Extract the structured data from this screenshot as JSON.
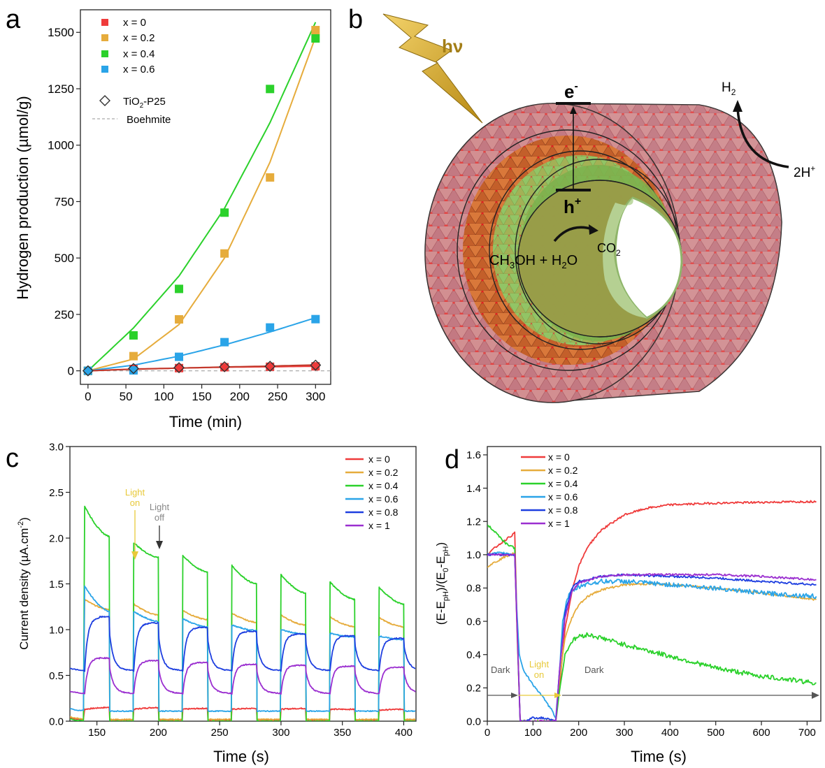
{
  "chart_data": [
    {
      "panel_letter": "a",
      "type": "scatter",
      "xlabel": "Time (min)",
      "ylabel": "Hydrogen production (µmol/g)",
      "xlim": [
        -10,
        320
      ],
      "ylim": [
        -60,
        1600
      ],
      "xticks": [
        0,
        50,
        100,
        150,
        200,
        250,
        300
      ],
      "yticks": [
        0,
        250,
        500,
        750,
        1000,
        1250,
        1500
      ],
      "x": [
        0,
        60,
        120,
        180,
        240,
        300
      ],
      "series": [
        {
          "name": "x = 0",
          "color": "#ef3b3b",
          "marker": "square",
          "values": [
            0,
            8,
            12,
            16,
            18,
            20
          ],
          "fit": [
            0,
            8,
            12,
            16,
            18,
            20
          ]
        },
        {
          "name": "x = 0.2",
          "color": "#e6ac3c",
          "marker": "square",
          "values": [
            0,
            65,
            228,
            520,
            857,
            1510
          ],
          "fit": [
            0,
            52,
            205,
            500,
            925,
            1480
          ]
        },
        {
          "name": "x = 0.4",
          "color": "#2bd12b",
          "marker": "square",
          "values": [
            0,
            157,
            363,
            701,
            1249,
            1473
          ],
          "fit": [
            0,
            190,
            420,
            720,
            1100,
            1545
          ]
        },
        {
          "name": "x = 0.6",
          "color": "#2aa4e8",
          "marker": "square",
          "values": [
            0,
            2,
            62,
            127,
            192,
            229
          ],
          "fit": [
            0,
            25,
            65,
            115,
            172,
            235
          ]
        },
        {
          "name": "TiO2-P25",
          "legend_main": "TiO",
          "legend_sub": "2",
          "legend_rest": "-P25",
          "color": "#555555",
          "marker": "diamond",
          "values": [
            0,
            10,
            14,
            18,
            20,
            25
          ],
          "fit": [
            0,
            7,
            12,
            17,
            21,
            26
          ]
        },
        {
          "name": "Boehmite",
          "color": "#9b9b9b",
          "marker": "dashed-line",
          "values": [
            0,
            0,
            0,
            0,
            0,
            0
          ]
        }
      ],
      "grid": false,
      "legend_position": "top-left"
    },
    {
      "panel_letter": "b",
      "type": "other",
      "photon_label": "hν",
      "electron_label": "e",
      "electron_sup": "-",
      "hole_label": "h",
      "hole_sup": "+",
      "h2_main": "H",
      "h2_sub": "2",
      "proton_label": "2H",
      "proton_sup": "+",
      "reactant_label_main": "CH",
      "reactant_label_sub": "3",
      "reactant_label_rest": "OH + H",
      "reactant_label_sub2": "2",
      "reactant_label_end": "O",
      "co2_main": "CO",
      "co2_sub": "2",
      "colors": {
        "outer_wall": "#d9817a",
        "mid_wall": "#e07b36",
        "inner_wall": "#7ab34a",
        "lightning": "#d4a72c"
      }
    },
    {
      "panel_letter": "c",
      "type": "line",
      "xlabel": "Time (s)",
      "ylabel_main": "Current density (µA.cm",
      "ylabel_sup": "-2",
      "ylabel_end": ")",
      "xlim": [
        128,
        410
      ],
      "ylim": [
        0,
        3.0
      ],
      "xticks": [
        150,
        200,
        250,
        300,
        350,
        400
      ],
      "yticks": [
        0.0,
        0.5,
        1.0,
        1.5,
        2.0,
        2.5,
        3.0
      ],
      "light_on_intervals": [
        [
          140,
          160
        ],
        [
          180,
          200
        ],
        [
          220,
          240
        ],
        [
          260,
          280
        ],
        [
          300,
          320
        ],
        [
          340,
          360
        ],
        [
          380,
          400
        ]
      ],
      "series": [
        {
          "name": "x = 0",
          "color": "#ef3b3b",
          "on_start": [
            0.13,
            0.13,
            0.13,
            0.13,
            0.13,
            0.13,
            0.12
          ],
          "on_end": [
            0.15,
            0.15,
            0.14,
            0.14,
            0.14,
            0.13,
            0.13
          ],
          "dark": 0.01
        },
        {
          "name": "x = 0.2",
          "color": "#e6ac3c",
          "on_start": [
            1.33,
            1.28,
            1.21,
            1.18,
            1.16,
            1.14,
            1.13
          ],
          "on_end": [
            1.22,
            1.16,
            1.11,
            1.08,
            1.05,
            1.03,
            1.03
          ],
          "dark": 0.02
        },
        {
          "name": "x = 0.4",
          "color": "#2bd12b",
          "on_start": [
            2.35,
            1.95,
            1.81,
            1.7,
            1.6,
            1.52,
            1.46
          ],
          "on_end": [
            2.02,
            1.79,
            1.63,
            1.5,
            1.4,
            1.33,
            1.28
          ],
          "dark": 0.0
        },
        {
          "name": "x = 0.6",
          "color": "#2aa4e8",
          "on_start": [
            1.48,
            1.2,
            1.12,
            1.05,
            1.0,
            0.96,
            0.93
          ],
          "on_end": [
            1.2,
            1.09,
            1.03,
            0.99,
            0.95,
            0.92,
            0.89
          ],
          "dark": 0.11
        },
        {
          "name": "x = 0.8",
          "color": "#1e3fe0",
          "on_start": [
            1.18,
            1.08,
            1.05,
            0.99,
            0.96,
            0.94,
            0.93
          ],
          "on_end": [
            1.13,
            1.07,
            1.02,
            0.98,
            0.95,
            0.93,
            0.9
          ],
          "dark": 0.55
        },
        {
          "name": "x = 1",
          "color": "#9b2fd0",
          "on_start": [
            0.69,
            0.66,
            0.64,
            0.62,
            0.61,
            0.6,
            0.59
          ],
          "on_end": [
            0.69,
            0.66,
            0.64,
            0.62,
            0.61,
            0.6,
            0.59
          ],
          "dark": 0.3
        }
      ],
      "annotations": [
        {
          "line1": "Light",
          "line2": "on",
          "x": 180,
          "color": "#e8c93a"
        },
        {
          "line1": "Light",
          "line2": "off",
          "x": 200,
          "color": "#888888"
        }
      ],
      "legend_position": "top-right"
    },
    {
      "panel_letter": "d",
      "type": "line",
      "xlabel": "Time (s)",
      "ylabel_parts": [
        "(E-E",
        "pH",
        ")/(E",
        "0",
        "-E",
        "pH",
        ")"
      ],
      "xlim": [
        0,
        730
      ],
      "ylim": [
        0,
        1.65
      ],
      "xticks": [
        0,
        100,
        200,
        300,
        400,
        500,
        600,
        700
      ],
      "yticks": [
        0.0,
        0.2,
        0.4,
        0.6,
        0.8,
        1.0,
        1.2,
        1.4,
        1.6
      ],
      "series": [
        {
          "name": "x = 0",
          "color": "#ef3b3b",
          "x": [
            0,
            20,
            40,
            60,
            66,
            72,
            80,
            150,
            158,
            170,
            185,
            200,
            220,
            250,
            300,
            350,
            400,
            500,
            600,
            720
          ],
          "values": [
            1.0,
            1.05,
            1.09,
            1.13,
            0.5,
            0.0,
            0.0,
            0.0,
            0.2,
            0.55,
            0.78,
            0.93,
            1.05,
            1.15,
            1.24,
            1.28,
            1.3,
            1.31,
            1.315,
            1.32
          ]
        },
        {
          "name": "x = 0.2",
          "color": "#e6ac3c",
          "x": [
            0,
            20,
            40,
            60,
            66,
            72,
            80,
            150,
            158,
            170,
            185,
            200,
            220,
            250,
            300,
            350,
            400,
            500,
            600,
            720
          ],
          "values": [
            0.93,
            0.96,
            0.99,
            1.01,
            0.45,
            0.0,
            0.0,
            0.0,
            0.25,
            0.5,
            0.62,
            0.7,
            0.75,
            0.79,
            0.82,
            0.825,
            0.82,
            0.8,
            0.77,
            0.73
          ]
        },
        {
          "name": "x = 0.4",
          "color": "#2bd12b",
          "x": [
            0,
            20,
            40,
            60,
            66,
            72,
            80,
            150,
            158,
            170,
            185,
            200,
            220,
            250,
            300,
            400,
            500,
            600,
            720
          ],
          "values": [
            1.18,
            1.13,
            1.07,
            1.04,
            0.5,
            0.0,
            0.0,
            0.0,
            0.18,
            0.4,
            0.48,
            0.51,
            0.52,
            0.5,
            0.46,
            0.39,
            0.32,
            0.27,
            0.23
          ]
        },
        {
          "name": "x = 0.6",
          "color": "#2aa4e8",
          "x": [
            0,
            20,
            40,
            60,
            64,
            70,
            80,
            100,
            120,
            140,
            150,
            158,
            165,
            175,
            190,
            210,
            250,
            300,
            400,
            500,
            600,
            720
          ],
          "values": [
            1.0,
            1.01,
            1.01,
            1.0,
            0.7,
            0.4,
            0.3,
            0.22,
            0.15,
            0.07,
            0.02,
            0.3,
            0.6,
            0.74,
            0.79,
            0.82,
            0.84,
            0.84,
            0.82,
            0.8,
            0.77,
            0.75
          ]
        },
        {
          "name": "x = 0.8",
          "color": "#1e3fe0",
          "x": [
            0,
            20,
            40,
            60,
            66,
            72,
            80,
            100,
            120,
            150,
            158,
            170,
            185,
            200,
            250,
            300,
            400,
            500,
            600,
            720
          ],
          "values": [
            1.0,
            1.0,
            1.0,
            1.0,
            0.5,
            0.0,
            0.0,
            0.02,
            0.02,
            0.0,
            0.3,
            0.65,
            0.8,
            0.84,
            0.87,
            0.88,
            0.87,
            0.86,
            0.84,
            0.82
          ]
        },
        {
          "name": "x = 1",
          "color": "#9b2fd0",
          "x": [
            0,
            20,
            40,
            60,
            66,
            72,
            80,
            150,
            158,
            170,
            185,
            200,
            250,
            300,
            400,
            500,
            600,
            720
          ],
          "values": [
            1.0,
            1.0,
            1.0,
            1.0,
            0.5,
            0.0,
            0.0,
            0.0,
            0.3,
            0.62,
            0.78,
            0.83,
            0.87,
            0.88,
            0.88,
            0.88,
            0.87,
            0.85
          ]
        }
      ],
      "annotations": [
        {
          "text": "Dark",
          "color": "#555555"
        },
        {
          "line1": "Light",
          "line2": "on",
          "color": "#e8c93a"
        },
        {
          "text": "Dark",
          "color": "#555555"
        }
      ],
      "legend_position": "top-left"
    }
  ]
}
